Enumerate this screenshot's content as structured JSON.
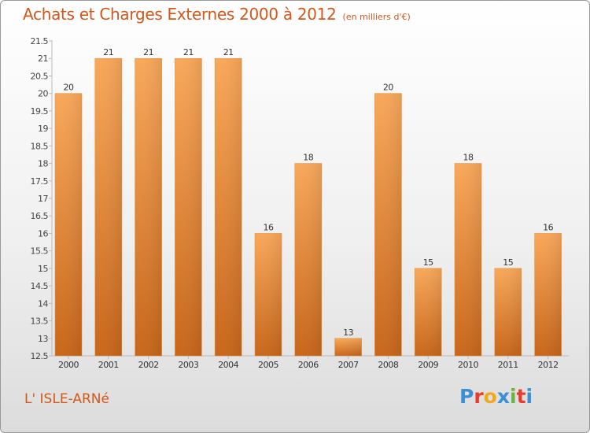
{
  "title": "Achats et Charges Externes 2000 à 2012",
  "subtitle": "(en milliers d'€)",
  "commune": "L' ISLE-ARNé",
  "logo": {
    "letters": [
      "P",
      "r",
      "o",
      "x",
      "i",
      "t",
      "i"
    ],
    "colors": [
      "#3b8fd6",
      "#e83c2c",
      "#f2a81d",
      "#3b8fd6",
      "#6cb33f",
      "#e83c2c",
      "#3b8fd6"
    ]
  },
  "chart_data": {
    "type": "bar",
    "title": "Achats et Charges Externes 2000 à 2012",
    "subtitle": "(en milliers d'€)",
    "categories": [
      "2000",
      "2001",
      "2002",
      "2003",
      "2004",
      "2005",
      "2006",
      "2007",
      "2008",
      "2009",
      "2010",
      "2011",
      "2012"
    ],
    "values": [
      20,
      21,
      21,
      21,
      21,
      16,
      18,
      13,
      20,
      15,
      18,
      15,
      16
    ],
    "ylim": [
      12.5,
      21.5
    ],
    "yticks": [
      "12.5",
      "13",
      "13.5",
      "14",
      "14.5",
      "15",
      "15.5",
      "16",
      "16.5",
      "17",
      "17.5",
      "18",
      "18.5",
      "19",
      "19.5",
      "20",
      "20.5",
      "21",
      "21.5"
    ],
    "grid": false,
    "bar_color": "#f5a04c",
    "xlabel": "",
    "ylabel": ""
  }
}
